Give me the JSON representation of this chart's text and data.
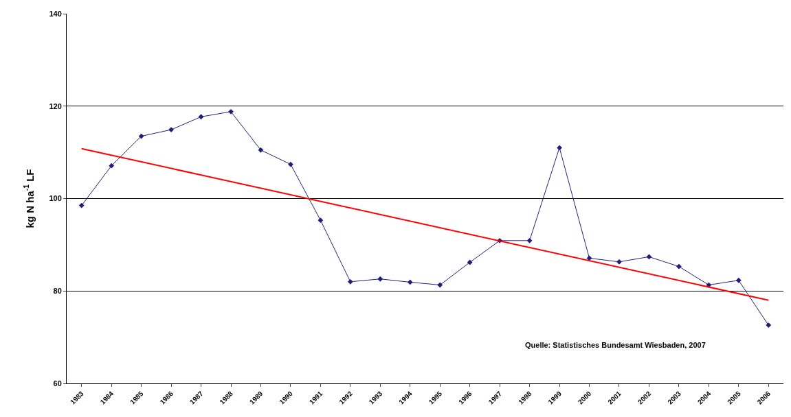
{
  "chart_data": {
    "type": "line",
    "ylabel": "kg N ha$^{-1}$ LF",
    "categories": [
      "1983",
      "1984",
      "1985",
      "1986",
      "1987",
      "1988",
      "1989",
      "1990",
      "1991",
      "1992",
      "1993",
      "1994",
      "1995",
      "1996",
      "1997",
      "1998",
      "1999",
      "2000",
      "2001",
      "2002",
      "2003",
      "2004",
      "2005",
      "2006"
    ],
    "series": [
      {
        "color": "#1f1f7a",
        "marker": "diamond",
        "values": [
          98.5,
          107.1,
          113.5,
          114.9,
          117.7,
          118.8,
          110.5,
          107.4,
          95.3,
          82.0,
          82.6,
          81.9,
          81.3,
          86.2,
          90.9,
          90.9,
          111.0,
          87.1,
          86.3,
          87.4,
          85.3,
          81.3,
          82.3,
          72.6
        ]
      },
      {
        "type": "line",
        "color": "#ff0000",
        "marker": "none",
        "values": [
          110.8,
          null,
          null,
          null,
          null,
          null,
          null,
          null,
          null,
          null,
          null,
          null,
          null,
          null,
          null,
          null,
          null,
          null,
          null,
          null,
          null,
          null,
          null,
          78.0
        ]
      }
    ],
    "ylim": [
      60,
      140
    ],
    "yticks": [
      60,
      80,
      100,
      120,
      140
    ],
    "grid": "y",
    "annotations": [
      {
        "text": "Quelle: Statistisches Bundesamt Wiesbaden, 2007"
      }
    ]
  }
}
